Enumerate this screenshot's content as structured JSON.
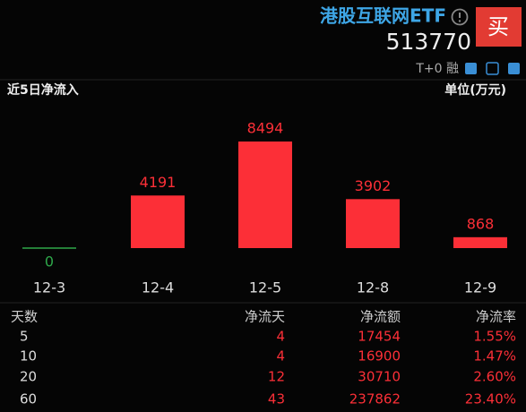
{
  "header": {
    "title": "港股互联网ETF",
    "code": "513770",
    "buy": "买",
    "badge": "T+0 融"
  },
  "chart_data": {
    "type": "bar",
    "title": "近5日净流入",
    "unit": "单位(万元)",
    "categories": [
      "12-3",
      "12-4",
      "12-5",
      "12-8",
      "12-9"
    ],
    "values": [
      0,
      4191,
      8494,
      3902,
      868
    ],
    "color": "#fc2f37",
    "zero_color": "#2ea84a"
  },
  "table": {
    "columns": [
      "天数",
      "净流天",
      "净流额",
      "净流率"
    ],
    "rows": [
      [
        "5",
        "4",
        "17454",
        "1.55%"
      ],
      [
        "10",
        "4",
        "16900",
        "1.47%"
      ],
      [
        "20",
        "12",
        "30710",
        "2.60%"
      ],
      [
        "60",
        "43",
        "237862",
        "23.40%"
      ]
    ]
  }
}
